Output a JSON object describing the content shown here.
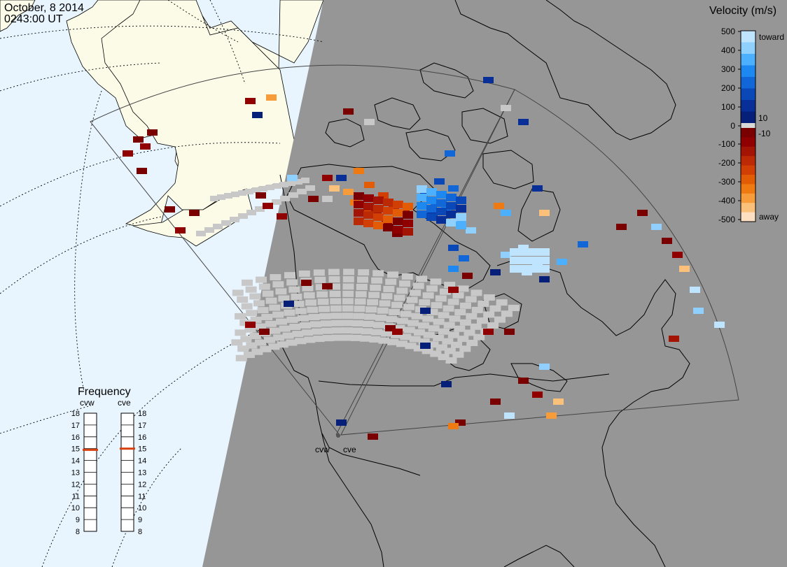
{
  "timestamp": {
    "date": "October, 8 2014",
    "time": "0243:00 UT"
  },
  "colorbar": {
    "title": "Velocity (m/s)",
    "ticks": [
      "500",
      "400",
      "300",
      "200",
      "100",
      "10",
      "0",
      "-10",
      "-100",
      "-200",
      "-300",
      "-400",
      "-500"
    ],
    "toward_label": "toward",
    "away_label": "away",
    "toward_colors": [
      "#bfe4ff",
      "#8fd0ff",
      "#4db0ff",
      "#1c88f0",
      "#1166d8",
      "#0a48b8",
      "#082f98",
      "#061f78"
    ],
    "away_colors": [
      "#7a0000",
      "#900000",
      "#a31405",
      "#bb2a05",
      "#d13f05",
      "#e25c05",
      "#f07a12",
      "#f79c3a",
      "#fbc07a",
      "#fde0c2"
    ]
  },
  "radars": {
    "west_label": "cvw",
    "east_label": "cve"
  },
  "frequency": {
    "title": "Frequency",
    "west_label": "cvw",
    "east_label": "cve",
    "levels": [
      "18",
      "17",
      "16",
      "15",
      "14",
      "13",
      "12",
      "11",
      "10",
      "9",
      "8"
    ],
    "west_value": 14.9,
    "east_value": 15.0,
    "marker_color": "#d84010"
  },
  "colors": {
    "night": "#969696",
    "day_ocean": "#e8f5ff",
    "day_land": "#fbfbe8",
    "ground_scatter": "#c8c8c8"
  }
}
